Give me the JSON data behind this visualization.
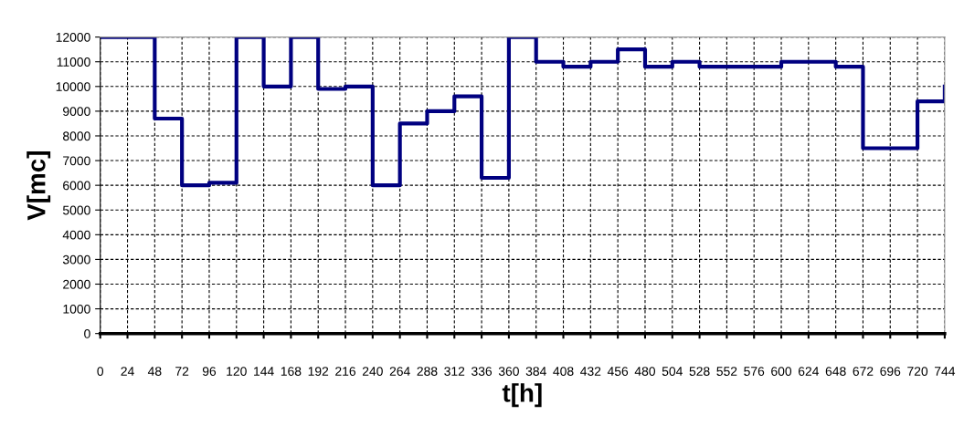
{
  "chart_data": {
    "type": "step",
    "xlabel": "t[h]",
    "ylabel": "V[mc]",
    "x": [
      0,
      24,
      48,
      72,
      96,
      120,
      144,
      168,
      192,
      216,
      240,
      264,
      288,
      312,
      336,
      360,
      384,
      408,
      432,
      456,
      480,
      504,
      528,
      552,
      576,
      600,
      624,
      648,
      672,
      696,
      720,
      744
    ],
    "series": [
      {
        "color": "#000080",
        "values": [
          12000,
          12000,
          8700,
          6000,
          6100,
          12000,
          10000,
          12000,
          9900,
          10000,
          6000,
          8500,
          9000,
          9600,
          6300,
          12000,
          11000,
          10800,
          11000,
          11500,
          10800,
          11000,
          10800,
          10800,
          10800,
          11000,
          11000,
          10800,
          7500,
          7500,
          9400,
          10000
        ]
      }
    ],
    "xlim": [
      0,
      744
    ],
    "ylim": [
      0,
      12000
    ],
    "xticks": [
      0,
      24,
      48,
      72,
      96,
      120,
      144,
      168,
      192,
      216,
      240,
      264,
      288,
      312,
      336,
      360,
      384,
      408,
      432,
      456,
      480,
      504,
      528,
      552,
      576,
      600,
      624,
      648,
      672,
      696,
      720,
      744
    ],
    "yticks": [
      0,
      1000,
      2000,
      3000,
      4000,
      5000,
      6000,
      7000,
      8000,
      9000,
      10000,
      11000,
      12000
    ],
    "grid": true,
    "marker": "none",
    "line_style": "solid"
  }
}
